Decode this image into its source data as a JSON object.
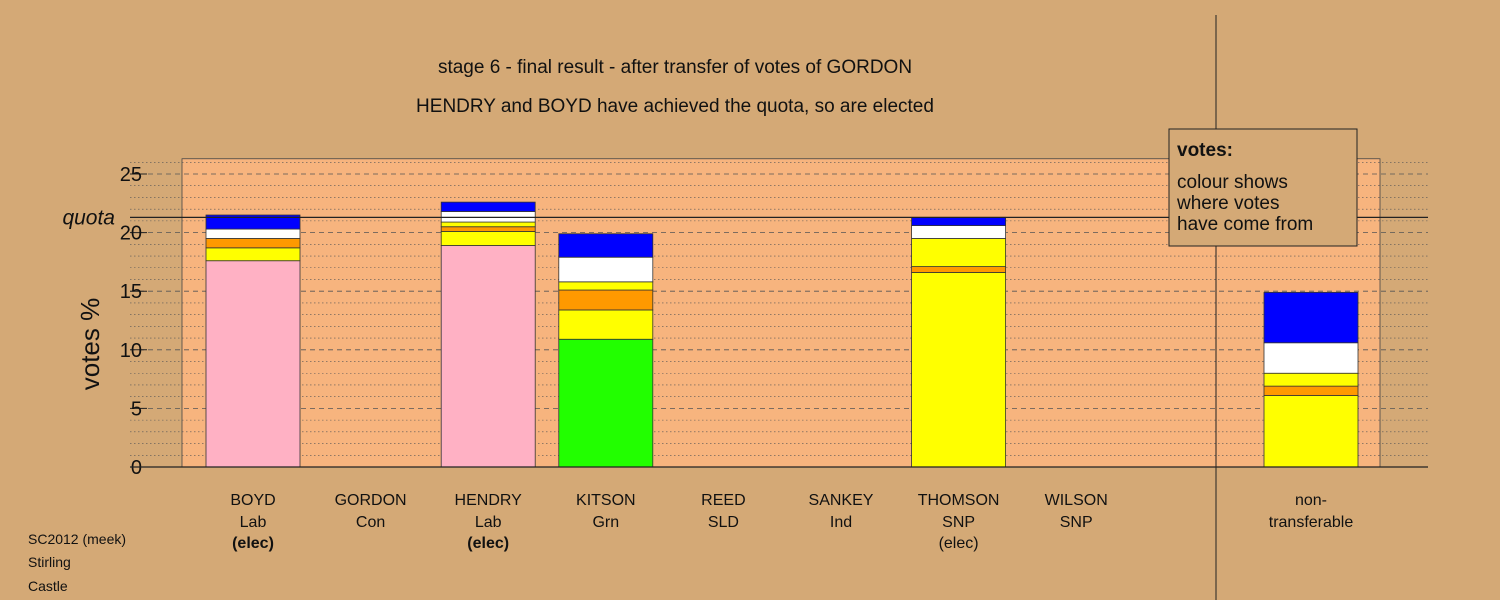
{
  "chart_data": {
    "type": "bar",
    "stacked": true,
    "title": "stage 6 - final result - after transfer of votes of GORDON",
    "subtitle": "HENDRY and BOYD have achieved the quota, so are elected",
    "ylabel": "votes %",
    "ylim": [
      0,
      26.3
    ],
    "yticks": [
      "0",
      "5",
      "10",
      "15",
      "20",
      "25"
    ],
    "quota": {
      "label": "quota",
      "value": 21.3
    },
    "candidates": [
      {
        "name": "BOYD",
        "party": "Lab",
        "status": "(elec)",
        "status_bold": true,
        "segments": [
          {
            "color": "#ffb1c4",
            "value": 17.6
          },
          {
            "color": "#ffff00",
            "value": 1.1
          },
          {
            "color": "#ff9900",
            "value": 0.8
          },
          {
            "color": "#ffffff",
            "value": 0.8
          },
          {
            "color": "#0000ff",
            "value": 1.2
          }
        ]
      },
      {
        "name": "GORDON",
        "party": "Con",
        "status": "",
        "segments": []
      },
      {
        "name": "HENDRY",
        "party": "Lab",
        "status": "(elec)",
        "status_bold": true,
        "segments": [
          {
            "color": "#ffb1c4",
            "value": 18.9
          },
          {
            "color": "#ffff00",
            "value": 1.2
          },
          {
            "color": "#ff9900",
            "value": 0.4
          },
          {
            "color": "#ffff00",
            "value": 0.4
          },
          {
            "color": "#ffffff",
            "value": 0.9
          },
          {
            "color": "#0000ff",
            "value": 0.8
          }
        ]
      },
      {
        "name": "KITSON",
        "party": "Grn",
        "status": "",
        "segments": [
          {
            "color": "#22ff00",
            "value": 10.9
          },
          {
            "color": "#ffff00",
            "value": 2.5
          },
          {
            "color": "#ff9900",
            "value": 1.7
          },
          {
            "color": "#ffff00",
            "value": 0.7
          },
          {
            "color": "#ffffff",
            "value": 2.1
          },
          {
            "color": "#0000ff",
            "value": 2.0
          }
        ]
      },
      {
        "name": "REED",
        "party": "SLD",
        "status": "",
        "segments": []
      },
      {
        "name": "SANKEY",
        "party": "Ind",
        "status": "",
        "segments": []
      },
      {
        "name": "THOMSON",
        "party": "SNP",
        "status": "(elec)",
        "status_bold": false,
        "segments": [
          {
            "color": "#ffff00",
            "value": 16.6
          },
          {
            "color": "#ff9900",
            "value": 0.5
          },
          {
            "color": "#ffff00",
            "value": 2.4
          },
          {
            "color": "#ffffff",
            "value": 1.1
          },
          {
            "color": "#0000ff",
            "value": 0.7
          }
        ]
      },
      {
        "name": "WILSON",
        "party": "SNP",
        "status": "",
        "segments": []
      }
    ],
    "nontransferable": {
      "label_line1": "non-",
      "label_line2": "transferable",
      "segments": [
        {
          "color": "#ffff00",
          "value": 6.1
        },
        {
          "color": "#ff9900",
          "value": 0.8
        },
        {
          "color": "#ffff00",
          "value": 1.1
        },
        {
          "color": "#ffffff",
          "value": 2.6
        },
        {
          "color": "#0000ff",
          "value": 4.3
        }
      ]
    },
    "legend": {
      "heading": "votes:",
      "lines": [
        "colour shows",
        "where votes",
        "have come from"
      ]
    }
  },
  "footer": {
    "lines": [
      "SC2012 (meek)",
      "Stirling",
      "Castle"
    ]
  },
  "colors": {
    "background": "#d4a976",
    "plot_bg": "#f7b47e",
    "legend_bg": "#d4a976"
  }
}
